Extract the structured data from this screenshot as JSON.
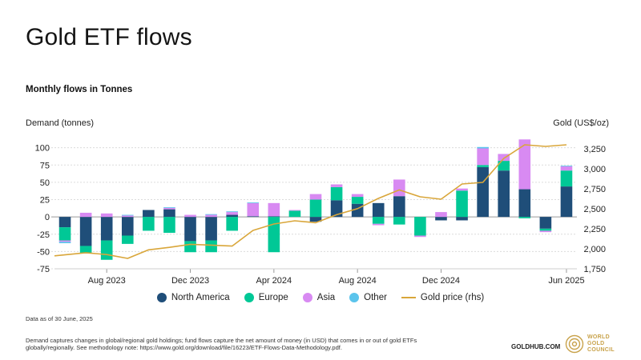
{
  "title": "Gold ETF flows",
  "subtitle": "Monthly flows in Tonnes",
  "left_axis_label": "Demand (tonnes)",
  "right_axis_label": "Gold (US$/oz)",
  "note_date": "Data as of 30 June, 2025",
  "note_method": "Demand captures changes in global/regional gold holdings; fund flows capture the net amount of money (in USD) that comes in or out of gold ETFs globally/regionally. See methodology note: https://www.gold.org/download/file/16223/ETF-Flows-Data-Methodology.pdf.",
  "site": "GOLDHUB.COM",
  "logo_text": [
    "WORLD",
    "GOLD",
    "COUNCIL"
  ],
  "legend": [
    {
      "label": "North America",
      "color": "#1f4e79",
      "kind": "dot"
    },
    {
      "label": "Europe",
      "color": "#00c896",
      "kind": "dot"
    },
    {
      "label": "Asia",
      "color": "#d88af2",
      "kind": "dot"
    },
    {
      "label": "Other",
      "color": "#5bc4ec",
      "kind": "dot"
    },
    {
      "label": "Gold price (rhs)",
      "color": "#d9a63a",
      "kind": "line"
    }
  ],
  "chart_data": {
    "type": "bar",
    "stacked": true,
    "categories": [
      "Jun 2023",
      "Jul 2023",
      "Aug 2023",
      "Sep 2023",
      "Oct 2023",
      "Nov 2023",
      "Dec 2023",
      "Jan 2024",
      "Feb 2024",
      "Mar 2024",
      "Apr 2024",
      "May 2024",
      "Jun 2024",
      "Jul 2024",
      "Aug 2024",
      "Sep 2024",
      "Oct 2024",
      "Nov 2024",
      "Dec 2024",
      "Jan 2025",
      "Feb 2025",
      "Mar 2025",
      "Apr 2025",
      "May 2025",
      "Jun 2025"
    ],
    "x_tick_labels": [
      {
        "index": 2,
        "label": "Aug 2023"
      },
      {
        "index": 6,
        "label": "Dec 2023"
      },
      {
        "index": 10,
        "label": "Apr 2024"
      },
      {
        "index": 14,
        "label": "Aug 2024"
      },
      {
        "index": 18,
        "label": "Dec 2024"
      },
      {
        "index": 24,
        "label": "Jun 2025"
      }
    ],
    "series": [
      {
        "name": "North America",
        "color": "#1f4e79",
        "values": [
          -15,
          -42,
          -34,
          -27,
          10,
          11,
          -35,
          -34,
          3,
          1,
          1,
          0,
          -7,
          24,
          19,
          20,
          30,
          0,
          -5,
          -5,
          72,
          67,
          40,
          -17,
          44
        ]
      },
      {
        "name": "Europe",
        "color": "#00c896",
        "values": [
          -19,
          -10,
          -28,
          -12,
          -20,
          -23,
          -16,
          -17,
          -20,
          0,
          -51,
          9,
          25,
          19,
          10,
          -10,
          -11,
          -27,
          0,
          38,
          3,
          14,
          -2,
          -3,
          23
        ]
      },
      {
        "name": "Asia",
        "color": "#d88af2",
        "values": [
          -2,
          6,
          5,
          2,
          0,
          2,
          3,
          3,
          4,
          19,
          19,
          1,
          8,
          4,
          4,
          -2,
          24,
          -2,
          7,
          3,
          24,
          10,
          72,
          -2,
          6
        ]
      },
      {
        "name": "Other",
        "color": "#5bc4ec",
        "values": [
          -2,
          -1,
          0,
          1,
          0,
          1,
          0,
          1,
          1,
          1,
          0,
          0,
          0,
          0,
          0,
          0,
          0,
          0,
          0,
          0,
          2,
          0,
          0,
          0,
          1
        ]
      }
    ],
    "line_series": {
      "name": "Gold price (rhs)",
      "color": "#d9a63a",
      "axis": "right",
      "values": [
        1912,
        1951,
        1928,
        1880,
        1987,
        2018,
        2056,
        2046,
        2034,
        2230,
        2310,
        2350,
        2326,
        2426,
        2502,
        2630,
        2736,
        2650,
        2620,
        2810,
        2830,
        3130,
        3300,
        3280,
        3300
      ]
    },
    "left_axis": {
      "ticks": [
        100,
        75,
        50,
        25,
        0,
        -25,
        -50,
        -75
      ],
      "ylim": [
        -75,
        110
      ]
    },
    "right_axis": {
      "ticks": [
        3250,
        3000,
        2750,
        2500,
        2250,
        2000,
        1750
      ],
      "ylim": [
        1750,
        3350
      ]
    },
    "grid": true,
    "legend_position": "bottom"
  }
}
